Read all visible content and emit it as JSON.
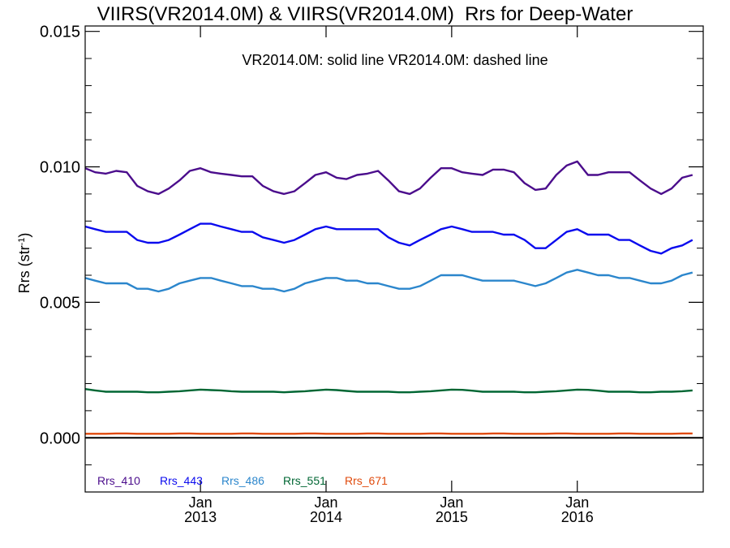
{
  "chart_data": {
    "type": "line",
    "title": "VIIRS(VR2014.0M) & VIIRS(VR2014.0M)  Rrs for Deep-Water",
    "ylabel": "Rrs (str⁻¹)",
    "ylabel_main": "Rrs (str",
    "ylabel_sup": "-1",
    "ylabel_close": ")",
    "xlabel": "",
    "ylim": [
      -0.002,
      0.0152
    ],
    "xlim": [
      "2012-02-01",
      "2017-01-01"
    ],
    "y_ticks": [
      0.0,
      0.005,
      0.01,
      0.015
    ],
    "y_tick_labels": [
      "0.000",
      "0.005",
      "0.010",
      "0.015"
    ],
    "x_ticks": [
      {
        "x": "2013-01-01",
        "month": "Jan",
        "year": "2013"
      },
      {
        "x": "2014-01-01",
        "month": "Jan",
        "year": "2014"
      },
      {
        "x": "2015-01-01",
        "month": "Jan",
        "year": "2015"
      },
      {
        "x": "2016-01-01",
        "month": "Jan",
        "year": "2016"
      }
    ],
    "annotation": "VR2014.0M: solid line   VR2014.0M: dashed line",
    "grid": false,
    "legend_position": "bottom-left",
    "reference_line": {
      "y": 0.0,
      "color": "#000000"
    },
    "x": [
      "2012-02-01",
      "2012-03-01",
      "2012-04-01",
      "2012-05-01",
      "2012-06-01",
      "2012-07-01",
      "2012-08-01",
      "2012-09-01",
      "2012-10-01",
      "2012-11-01",
      "2012-12-01",
      "2013-01-01",
      "2013-02-01",
      "2013-03-01",
      "2013-04-01",
      "2013-05-01",
      "2013-06-01",
      "2013-07-01",
      "2013-08-01",
      "2013-09-01",
      "2013-10-01",
      "2013-11-01",
      "2013-12-01",
      "2014-01-01",
      "2014-02-01",
      "2014-03-01",
      "2014-04-01",
      "2014-05-01",
      "2014-06-01",
      "2014-07-01",
      "2014-08-01",
      "2014-09-01",
      "2014-10-01",
      "2014-11-01",
      "2014-12-01",
      "2015-01-01",
      "2015-02-01",
      "2015-03-01",
      "2015-04-01",
      "2015-05-01",
      "2015-06-01",
      "2015-07-01",
      "2015-08-01",
      "2015-09-01",
      "2015-10-01",
      "2015-11-01",
      "2015-12-01",
      "2016-01-01",
      "2016-02-01",
      "2016-03-01",
      "2016-04-01",
      "2016-05-01",
      "2016-06-01",
      "2016-07-01",
      "2016-08-01",
      "2016-09-01",
      "2016-10-01",
      "2016-11-01",
      "2016-12-01"
    ],
    "series": [
      {
        "name": "Rrs_410",
        "color": "#4b0d8c",
        "values": [
          0.00995,
          0.0098,
          0.00975,
          0.00985,
          0.0098,
          0.0093,
          0.0091,
          0.009,
          0.0092,
          0.0095,
          0.00985,
          0.00995,
          0.0098,
          0.00975,
          0.0097,
          0.00965,
          0.00965,
          0.0093,
          0.0091,
          0.009,
          0.0091,
          0.0094,
          0.0097,
          0.0098,
          0.0096,
          0.00955,
          0.0097,
          0.00975,
          0.00985,
          0.0095,
          0.0091,
          0.009,
          0.0092,
          0.0096,
          0.00995,
          0.00995,
          0.0098,
          0.00975,
          0.0097,
          0.0099,
          0.0099,
          0.0098,
          0.0094,
          0.00915,
          0.0092,
          0.0097,
          0.01005,
          0.0102,
          0.0097,
          0.0097,
          0.0098,
          0.0098,
          0.0098,
          0.0095,
          0.0092,
          0.009,
          0.0092,
          0.0096,
          0.0097
        ]
      },
      {
        "name": "Rrs_443",
        "color": "#0a0aee",
        "values": [
          0.0078,
          0.0077,
          0.0076,
          0.0076,
          0.0076,
          0.0073,
          0.0072,
          0.0072,
          0.0073,
          0.0075,
          0.0077,
          0.0079,
          0.0079,
          0.0078,
          0.0077,
          0.0076,
          0.0076,
          0.0074,
          0.0073,
          0.0072,
          0.0073,
          0.0075,
          0.0077,
          0.0078,
          0.0077,
          0.0077,
          0.0077,
          0.0077,
          0.0077,
          0.0074,
          0.0072,
          0.0071,
          0.0073,
          0.0075,
          0.0077,
          0.0078,
          0.0077,
          0.0076,
          0.0076,
          0.0076,
          0.0075,
          0.0075,
          0.0073,
          0.007,
          0.007,
          0.0073,
          0.0076,
          0.0077,
          0.0075,
          0.0075,
          0.0075,
          0.0073,
          0.0073,
          0.0071,
          0.0069,
          0.0068,
          0.007,
          0.0071,
          0.0073
        ]
      },
      {
        "name": "Rrs_486",
        "color": "#2b86cc",
        "values": [
          0.0059,
          0.0058,
          0.0057,
          0.0057,
          0.0057,
          0.0055,
          0.0055,
          0.0054,
          0.0055,
          0.0057,
          0.0058,
          0.0059,
          0.0059,
          0.0058,
          0.0057,
          0.0056,
          0.0056,
          0.0055,
          0.0055,
          0.0054,
          0.0055,
          0.0057,
          0.0058,
          0.0059,
          0.0059,
          0.0058,
          0.0058,
          0.0057,
          0.0057,
          0.0056,
          0.0055,
          0.0055,
          0.0056,
          0.0058,
          0.006,
          0.006,
          0.006,
          0.0059,
          0.0058,
          0.0058,
          0.0058,
          0.0058,
          0.0057,
          0.0056,
          0.0057,
          0.0059,
          0.0061,
          0.0062,
          0.0061,
          0.006,
          0.006,
          0.0059,
          0.0059,
          0.0058,
          0.0057,
          0.0057,
          0.0058,
          0.006,
          0.0061
        ]
      },
      {
        "name": "Rrs_551",
        "color": "#006633",
        "values": [
          0.0018,
          0.00175,
          0.0017,
          0.0017,
          0.0017,
          0.0017,
          0.00168,
          0.00168,
          0.0017,
          0.00172,
          0.00175,
          0.00178,
          0.00176,
          0.00175,
          0.00172,
          0.0017,
          0.0017,
          0.0017,
          0.0017,
          0.00168,
          0.0017,
          0.00172,
          0.00175,
          0.00178,
          0.00176,
          0.00173,
          0.0017,
          0.0017,
          0.0017,
          0.0017,
          0.00168,
          0.00168,
          0.0017,
          0.00172,
          0.00175,
          0.00178,
          0.00177,
          0.00174,
          0.0017,
          0.0017,
          0.0017,
          0.0017,
          0.00168,
          0.00168,
          0.0017,
          0.00172,
          0.00175,
          0.00178,
          0.00177,
          0.00174,
          0.0017,
          0.0017,
          0.0017,
          0.00168,
          0.00168,
          0.0017,
          0.0017,
          0.00172,
          0.00175
        ]
      },
      {
        "name": "Rrs_671",
        "color": "#e04a0c",
        "values": [
          0.00015,
          0.00015,
          0.00015,
          0.00016,
          0.00016,
          0.00015,
          0.00015,
          0.00015,
          0.00015,
          0.00016,
          0.00016,
          0.00015,
          0.00015,
          0.00015,
          0.00015,
          0.00016,
          0.00016,
          0.00015,
          0.00015,
          0.00015,
          0.00015,
          0.00016,
          0.00016,
          0.00015,
          0.00015,
          0.00015,
          0.00015,
          0.00016,
          0.00016,
          0.00015,
          0.00015,
          0.00015,
          0.00015,
          0.00016,
          0.00016,
          0.00015,
          0.00015,
          0.00015,
          0.00015,
          0.00016,
          0.00016,
          0.00015,
          0.00015,
          0.00015,
          0.00015,
          0.00016,
          0.00016,
          0.00015,
          0.00015,
          0.00015,
          0.00015,
          0.00016,
          0.00016,
          0.00015,
          0.00015,
          0.00015,
          0.00015,
          0.00016,
          0.00016
        ]
      }
    ]
  }
}
